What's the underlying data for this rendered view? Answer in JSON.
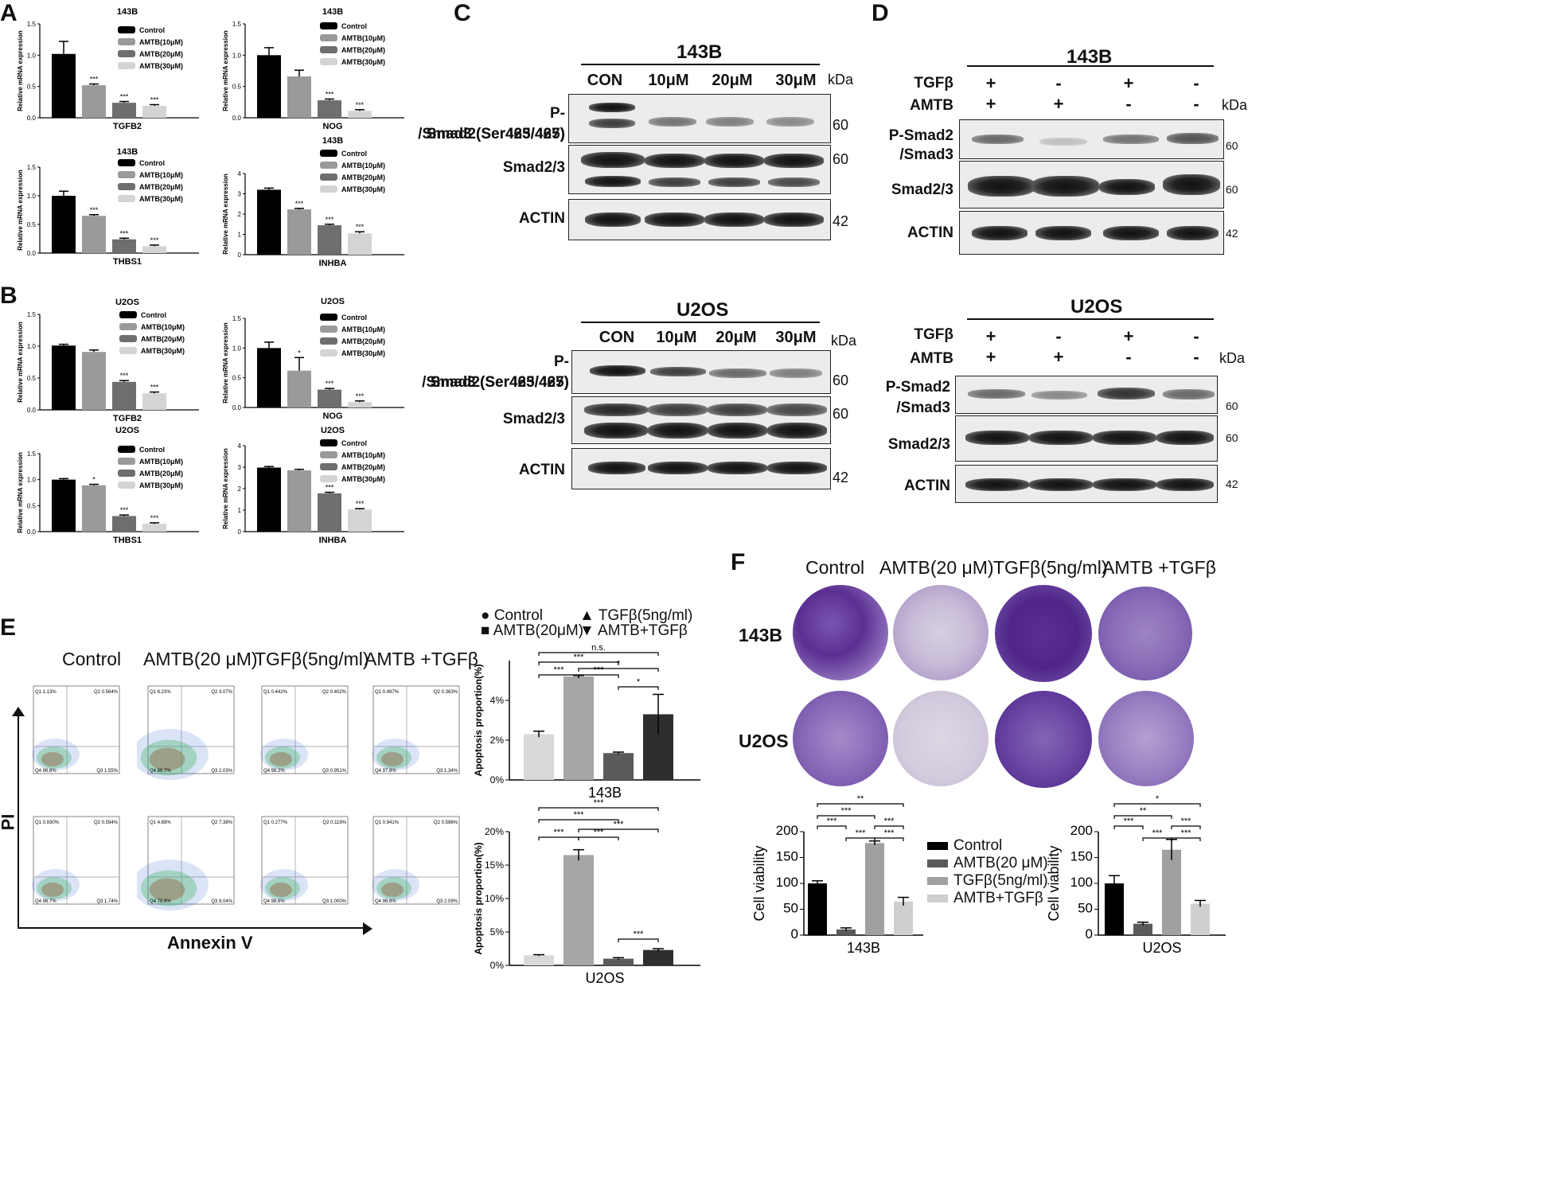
{
  "panels": {
    "A": "A",
    "B": "B",
    "C": "C",
    "D": "D",
    "E": "E",
    "F": "F"
  },
  "colors": {
    "control": "#000000",
    "amtb10": "#9a9a9a",
    "amtb20": "#6e6e6e",
    "amtb30": "#d4d4d4",
    "e_control": "#d9d9d9",
    "e_amtb": "#a6a6a6",
    "e_tgf": "#5a5a5a",
    "e_combo": "#2e2e2e",
    "stain": "#5a2f91"
  },
  "qpcr_legend": [
    "Control",
    "AMTB(10μM)",
    "AMTB(20μM)",
    "AMTB(30μM)"
  ],
  "qpcr_ylabel": "Relative mRNA expression",
  "chart_data": [
    {
      "id": "A1",
      "type": "bar",
      "title": "143B",
      "xlabel": "TGFB2",
      "ylabel": "Relative mRNA expression",
      "categories": [
        "Control",
        "AMTB(10μM)",
        "AMTB(20μM)",
        "AMTB(30μM)"
      ],
      "values": [
        1.02,
        0.52,
        0.24,
        0.19
      ],
      "errors": [
        0.2,
        0.02,
        0.02,
        0.02
      ],
      "sig": [
        "",
        "***",
        "***",
        "***"
      ],
      "ylim": [
        0,
        1.5
      ],
      "yticks": [
        "0.0",
        "0.5",
        "1.0",
        "1.5"
      ]
    },
    {
      "id": "A2",
      "type": "bar",
      "title": "143B",
      "xlabel": "NOG",
      "ylabel": "Relative mRNA expression",
      "categories": [
        "Control",
        "AMTB(10μM)",
        "AMTB(20μM)",
        "AMTB(30μM)"
      ],
      "values": [
        1.0,
        0.66,
        0.28,
        0.11
      ],
      "errors": [
        0.12,
        0.1,
        0.02,
        0.02
      ],
      "sig": [
        "",
        "",
        "***",
        "***"
      ],
      "ylim": [
        0,
        1.5
      ],
      "yticks": [
        "0.0",
        "0.5",
        "1.0",
        "1.5"
      ]
    },
    {
      "id": "A3",
      "type": "bar",
      "title": "143B",
      "xlabel": "THBS1",
      "ylabel": "Relative mRNA expression",
      "categories": [
        "Control",
        "AMTB(10μM)",
        "AMTB(20μM)",
        "AMTB(30μM)"
      ],
      "values": [
        1.0,
        0.65,
        0.24,
        0.12
      ],
      "errors": [
        0.08,
        0.02,
        0.02,
        0.02
      ],
      "sig": [
        "",
        "***",
        "***",
        "***"
      ],
      "ylim": [
        0,
        1.5
      ],
      "yticks": [
        "0.0",
        "0.5",
        "1.0",
        "1.5"
      ]
    },
    {
      "id": "A4",
      "type": "bar",
      "title": "143B",
      "xlabel": "INHBA",
      "ylabel": "Relative mRNA expression",
      "categories": [
        "Control",
        "AMTB(10μM)",
        "AMTB(20μM)",
        "AMTB(30μM)"
      ],
      "values": [
        3.2,
        2.23,
        1.45,
        1.05
      ],
      "errors": [
        0.08,
        0.05,
        0.05,
        0.08
      ],
      "sig": [
        "",
        "***",
        "***",
        "***"
      ],
      "ylim": [
        0,
        4
      ],
      "yticks": [
        "0",
        "1",
        "2",
        "3",
        "4"
      ]
    },
    {
      "id": "B1",
      "type": "bar",
      "title": "U2OS",
      "xlabel": "TGFB2",
      "ylabel": "Relative mRNA expression",
      "categories": [
        "Control",
        "AMTB(10μM)",
        "AMTB(20μM)",
        "AMTB(30μM)"
      ],
      "values": [
        1.01,
        0.91,
        0.44,
        0.26
      ],
      "errors": [
        0.02,
        0.03,
        0.02,
        0.02
      ],
      "sig": [
        "",
        "",
        "***",
        "***"
      ],
      "ylim": [
        0,
        1.5
      ],
      "yticks": [
        "0.0",
        "0.5",
        "1.0",
        "1.5"
      ]
    },
    {
      "id": "B2",
      "type": "bar",
      "title": "U2OS",
      "xlabel": "NOG",
      "ylabel": "Relative mRNA expression",
      "categories": [
        "Control",
        "AMTB(10μM)",
        "AMTB(20μM)",
        "AMTB(30μM)"
      ],
      "values": [
        1.0,
        0.62,
        0.3,
        0.09
      ],
      "errors": [
        0.1,
        0.22,
        0.02,
        0.02
      ],
      "sig": [
        "",
        "*",
        "***",
        "***"
      ],
      "ylim": [
        0,
        1.5
      ],
      "yticks": [
        "0.0",
        "0.5",
        "1.0",
        "1.5"
      ]
    },
    {
      "id": "B3",
      "type": "bar",
      "title": "U2OS",
      "xlabel": "THBS1",
      "ylabel": "Relative mRNA expression",
      "categories": [
        "Control",
        "AMTB(10μM)",
        "AMTB(20μM)",
        "AMTB(30μM)"
      ],
      "values": [
        1.0,
        0.89,
        0.3,
        0.15
      ],
      "errors": [
        0.02,
        0.02,
        0.02,
        0.02
      ],
      "sig": [
        "",
        "*",
        "***",
        "***"
      ],
      "ylim": [
        0,
        1.5
      ],
      "yticks": [
        "0.0",
        "0.5",
        "1.0",
        "1.5"
      ]
    },
    {
      "id": "B4",
      "type": "bar",
      "title": "U2OS",
      "xlabel": "INHBA",
      "ylabel": "Relative mRNA expression",
      "categories": [
        "Control",
        "AMTB(10μM)",
        "AMTB(20μM)",
        "AMTB(30μM)"
      ],
      "values": [
        2.98,
        2.85,
        1.78,
        1.03
      ],
      "errors": [
        0.05,
        0.05,
        0.05,
        0.04
      ],
      "sig": [
        "",
        "",
        "***",
        "***"
      ],
      "ylim": [
        0,
        4
      ],
      "yticks": [
        "0",
        "1",
        "2",
        "3",
        "4"
      ]
    },
    {
      "id": "E1",
      "type": "bar",
      "title": "",
      "xlabel": "143B",
      "ylabel": "Apoptosis proportion(%)",
      "categories": [
        "Control",
        "AMTB(20μM)",
        "TGFβ(5ng/ml)",
        "AMTB+TGFβ"
      ],
      "values": [
        2.3,
        5.2,
        1.35,
        3.3
      ],
      "errors": [
        0.15,
        0.05,
        0.05,
        1.0
      ],
      "ylim": [
        0,
        6
      ],
      "yticks": [
        "0%",
        "2%",
        "4%"
      ]
    },
    {
      "id": "E2",
      "type": "bar",
      "title": "",
      "xlabel": "U2OS",
      "ylabel": "Apoptosis proportion(%)",
      "categories": [
        "Control",
        "AMTB(20μM)",
        "TGFβ(5ng/ml)",
        "AMTB+TGFβ"
      ],
      "values": [
        1.5,
        16.5,
        1.0,
        2.3
      ],
      "errors": [
        0.1,
        0.8,
        0.15,
        0.2
      ],
      "ylim": [
        0,
        20
      ],
      "yticks": [
        "0%",
        "5%",
        "10%",
        "15%",
        "20%"
      ]
    },
    {
      "id": "F1",
      "type": "bar",
      "title": "",
      "xlabel": "143B",
      "ylabel": "Cell viability",
      "categories": [
        "Control",
        "AMTB(20 μM)",
        "TGFβ(5ng/ml)",
        "AMTB+TGFβ"
      ],
      "values": [
        100,
        11,
        178,
        65
      ],
      "errors": [
        5,
        3,
        4,
        8
      ],
      "ylim": [
        0,
        200
      ],
      "yticks": [
        "0",
        "50",
        "100",
        "150",
        "200"
      ]
    },
    {
      "id": "F2",
      "type": "bar",
      "title": "",
      "xlabel": "U2OS",
      "ylabel": "Cell viability",
      "categories": [
        "Control",
        "AMTB(20 μM)",
        "TGFβ(5ng/ml)",
        "AMTB+TGFβ"
      ],
      "values": [
        100,
        22,
        165,
        61
      ],
      "errors": [
        15,
        3,
        20,
        6
      ],
      "ylim": [
        0,
        200
      ],
      "yticks": [
        "0",
        "50",
        "100",
        "150",
        "200"
      ]
    }
  ],
  "E_legend": {
    "control": "Control",
    "amtb": "AMTB(20μM)",
    "tgf": "TGFβ(5ng/ml)",
    "combo": "AMTB+TGFβ"
  },
  "E_brackets_143B": [
    "n.s.",
    "***",
    "***",
    "***",
    "*",
    "*"
  ],
  "E_brackets_U2OS": [
    "***",
    "***",
    "***",
    "***",
    "***",
    "***"
  ],
  "F_brackets_143B": [
    "**",
    "***",
    "***",
    "***",
    "***",
    "***"
  ],
  "F_brackets_U2OS": [
    "*",
    "**",
    "***",
    "***",
    "***",
    "***"
  ],
  "F_legend": [
    "Control",
    "AMTB(20 μM)",
    "TGFβ(5ng/ml)",
    "AMTB+TGFβ"
  ],
  "western_C": {
    "title_143B": "143B",
    "title_U2OS": "U2OS",
    "lanes": [
      "CON",
      "10μM",
      "20μM",
      "30μM"
    ],
    "kda": "kDa",
    "labels": [
      "P-Smad2(Ser465/467)",
      "/Smad3 (Ser423/425)",
      "Smad2/3",
      "ACTIN"
    ],
    "mw": [
      "60",
      "60",
      "42"
    ]
  },
  "western_D": {
    "title_143B": "143B",
    "title_U2OS": "U2OS",
    "row1": "TGFβ",
    "row2": "AMTB",
    "tgf": [
      "+",
      "-",
      "+",
      "-"
    ],
    "amtb": [
      "+",
      "+",
      "-",
      "-"
    ],
    "kda": "kDa",
    "labels": [
      "P-Smad2",
      "/Smad3",
      "Smad2/3",
      "ACTIN"
    ],
    "mw": [
      "60",
      "60",
      "42"
    ]
  },
  "E_flow": {
    "columns": [
      "Control",
      "AMTB(20 μM)",
      "TGFβ(5ng/ml)",
      "AMTB +TGFβ"
    ],
    "yaxis": "PI",
    "xaxis": "Annexin V",
    "quadrants_row1": [
      [
        "1.13%",
        "0.564%",
        "1.55%",
        "96.8%"
      ],
      [
        "6.23%",
        "3.07%",
        "2.03%",
        "88.7%"
      ],
      [
        "0.442%",
        "0.402%",
        "0.951%",
        "98.2%"
      ],
      [
        "0.497%",
        "0.363%",
        "1.34%",
        "97.8%"
      ]
    ],
    "quadrants_row2": [
      [
        "0.930%",
        "0.594%",
        "1.74%",
        "96.7%"
      ],
      [
        "4.69%",
        "7.38%",
        "9.04%",
        "78.9%"
      ],
      [
        "0.277%",
        "0.119%",
        "1.000%",
        "98.6%"
      ],
      [
        "0.941%",
        "0.596%",
        "2.09%",
        "96.6%"
      ]
    ]
  },
  "F_plates": {
    "columns": [
      "Control",
      "AMTB(20 μM)",
      "TGFβ(5ng/ml)",
      "AMTB +TGFβ"
    ],
    "rows": [
      "143B",
      "U2OS"
    ]
  }
}
